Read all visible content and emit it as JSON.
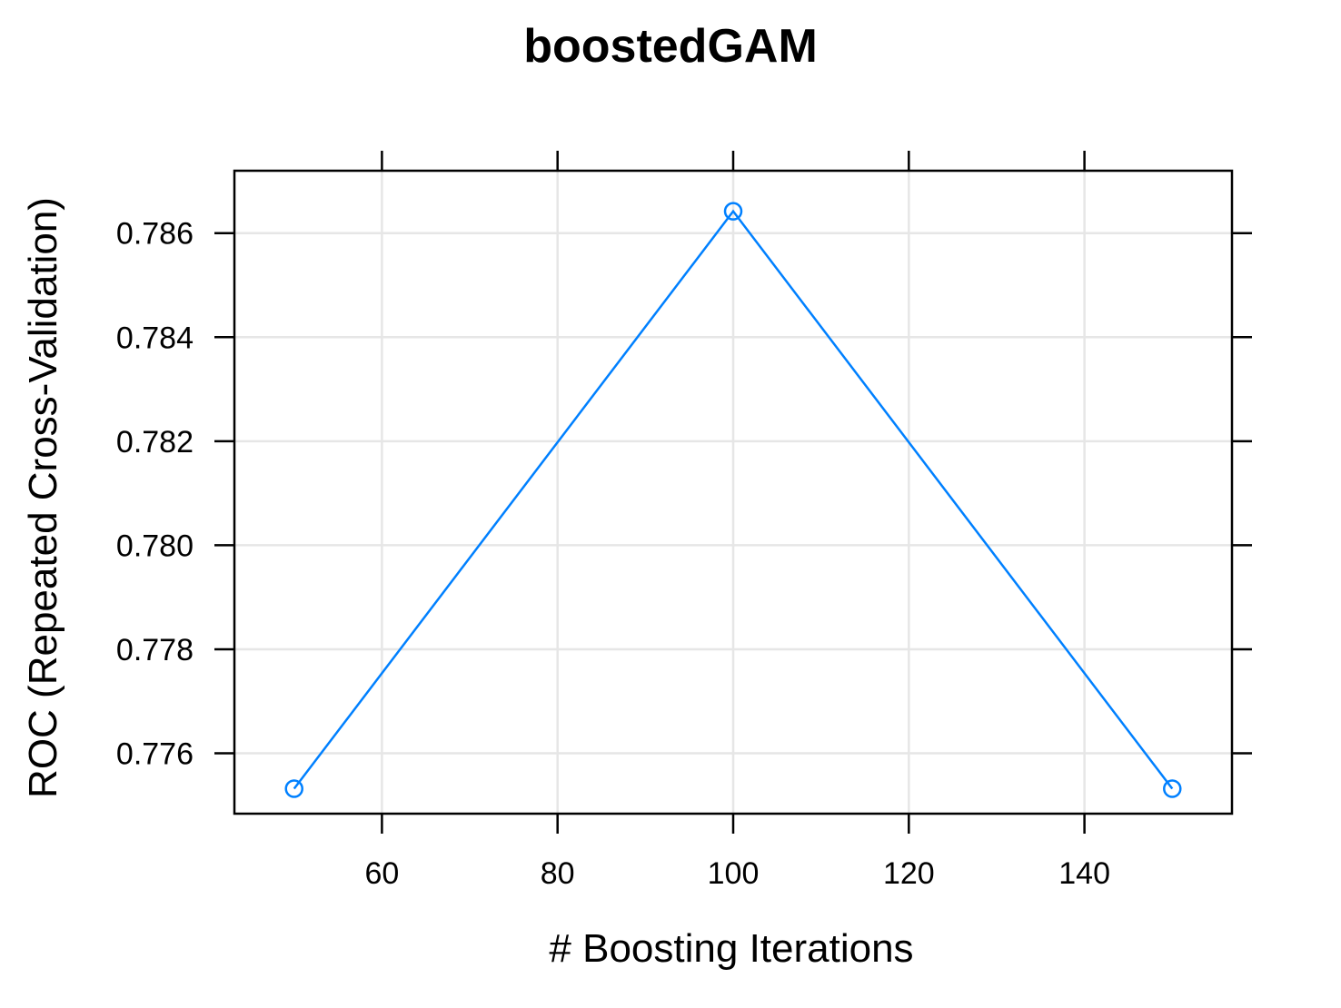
{
  "chart_data": {
    "type": "line",
    "title": "boostedGAM",
    "xlabel": "# Boosting Iterations",
    "ylabel": "ROC (Repeated Cross-Validation)",
    "x": [
      50,
      100,
      150
    ],
    "series": [
      {
        "values": [
          0.77532,
          0.78642,
          0.77532
        ],
        "color": "#0080ff",
        "marker": "open-circle"
      }
    ],
    "xlim": [
      43.2,
      156.8
    ],
    "ylim": [
      0.77484,
      0.7872
    ],
    "xticks": [
      60,
      80,
      100,
      120,
      140
    ],
    "xtick_labels": [
      "60",
      "80",
      "100",
      "120",
      "140"
    ],
    "yticks": [
      0.776,
      0.778,
      0.78,
      0.782,
      0.784,
      0.786
    ],
    "ytick_labels": [
      "0.776",
      "0.778",
      "0.780",
      "0.782",
      "0.784",
      "0.786"
    ],
    "grid": true,
    "grid_color": "#e6e6e6",
    "legend": "none",
    "x_ticks_side": "bottom, with extra tick marks on top",
    "y_ticks_side": "left, with extra tick marks on right"
  }
}
